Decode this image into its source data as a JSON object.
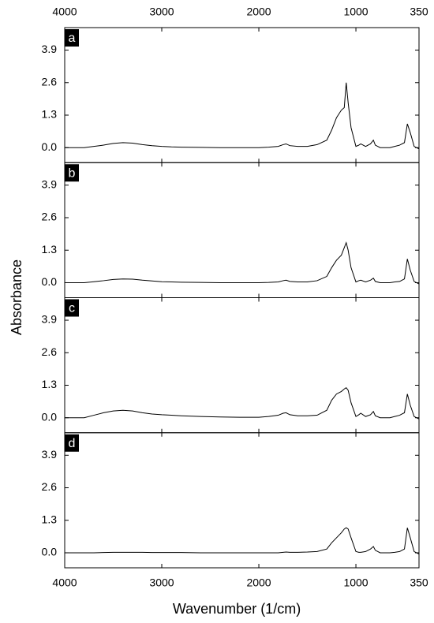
{
  "chart_data": {
    "type": "line",
    "xlabel": "Wavenumber (1/cm)",
    "ylabel": "Absorbance",
    "color": "#000000",
    "xlim": [
      4000,
      350
    ],
    "xticks": [
      4000,
      3000,
      2000,
      1000,
      350
    ],
    "ylim": [
      -0.6,
      4.8
    ],
    "yticks": [
      {
        "value": 0,
        "label": "0.0"
      },
      1.3,
      2.6,
      3.9
    ],
    "x": [
      4000,
      3800,
      3700,
      3600,
      3500,
      3400,
      3300,
      3200,
      3100,
      3000,
      2900,
      2800,
      2600,
      2400,
      2200,
      2000,
      1900,
      1800,
      1750,
      1720,
      1680,
      1600,
      1500,
      1400,
      1300,
      1250,
      1200,
      1150,
      1120,
      1100,
      1080,
      1050,
      1000,
      970,
      950,
      900,
      850,
      820,
      800,
      750,
      700,
      650,
      600,
      550,
      500,
      470,
      440,
      400,
      350
    ],
    "panels": [
      {
        "label": "a",
        "values": [
          0,
          0,
          0.05,
          0.1,
          0.17,
          0.2,
          0.18,
          0.12,
          0.08,
          0.05,
          0.03,
          0.02,
          0.01,
          0,
          0,
          0,
          0.02,
          0.05,
          0.12,
          0.15,
          0.08,
          0.05,
          0.05,
          0.12,
          0.3,
          0.7,
          1.2,
          1.5,
          1.6,
          2.6,
          1.8,
          0.8,
          0.05,
          0.1,
          0.15,
          0.05,
          0.15,
          0.3,
          0.1,
          0,
          0,
          0,
          0.05,
          0.1,
          0.2,
          0.95,
          0.6,
          0.05,
          -0.05
        ]
      },
      {
        "label": "b",
        "values": [
          0,
          0,
          0.04,
          0.08,
          0.13,
          0.15,
          0.14,
          0.1,
          0.07,
          0.04,
          0.03,
          0.02,
          0.01,
          0,
          0,
          0,
          0.01,
          0.03,
          0.08,
          0.1,
          0.05,
          0.03,
          0.03,
          0.08,
          0.25,
          0.6,
          0.9,
          1.1,
          1.4,
          1.6,
          1.3,
          0.6,
          0.03,
          0.08,
          0.1,
          0.03,
          0.1,
          0.18,
          0.05,
          0,
          0,
          0,
          0.03,
          0.05,
          0.15,
          0.95,
          0.5,
          0.05,
          -0.05
        ]
      },
      {
        "label": "c",
        "values": [
          0,
          0,
          0.1,
          0.2,
          0.27,
          0.3,
          0.27,
          0.2,
          0.15,
          0.12,
          0.1,
          0.08,
          0.05,
          0.03,
          0.02,
          0.02,
          0.05,
          0.1,
          0.18,
          0.2,
          0.12,
          0.08,
          0.08,
          0.1,
          0.3,
          0.7,
          0.95,
          1.05,
          1.15,
          1.2,
          1.1,
          0.6,
          0.05,
          0.12,
          0.18,
          0.05,
          0.12,
          0.25,
          0.08,
          0,
          0,
          0,
          0.05,
          0.1,
          0.2,
          0.95,
          0.5,
          0.05,
          -0.05
        ]
      },
      {
        "label": "d",
        "values": [
          0,
          0,
          0,
          0.01,
          0.02,
          0.02,
          0.02,
          0.02,
          0.01,
          0.01,
          0.01,
          0.01,
          0,
          0,
          0,
          0,
          0,
          0,
          0.02,
          0.03,
          0.02,
          0.02,
          0.03,
          0.05,
          0.15,
          0.4,
          0.6,
          0.8,
          0.95,
          1.0,
          0.95,
          0.6,
          0.05,
          0.02,
          0.02,
          0.05,
          0.15,
          0.25,
          0.1,
          0,
          0,
          0,
          0.02,
          0.05,
          0.15,
          1.0,
          0.6,
          0.05,
          -0.05
        ]
      }
    ]
  }
}
